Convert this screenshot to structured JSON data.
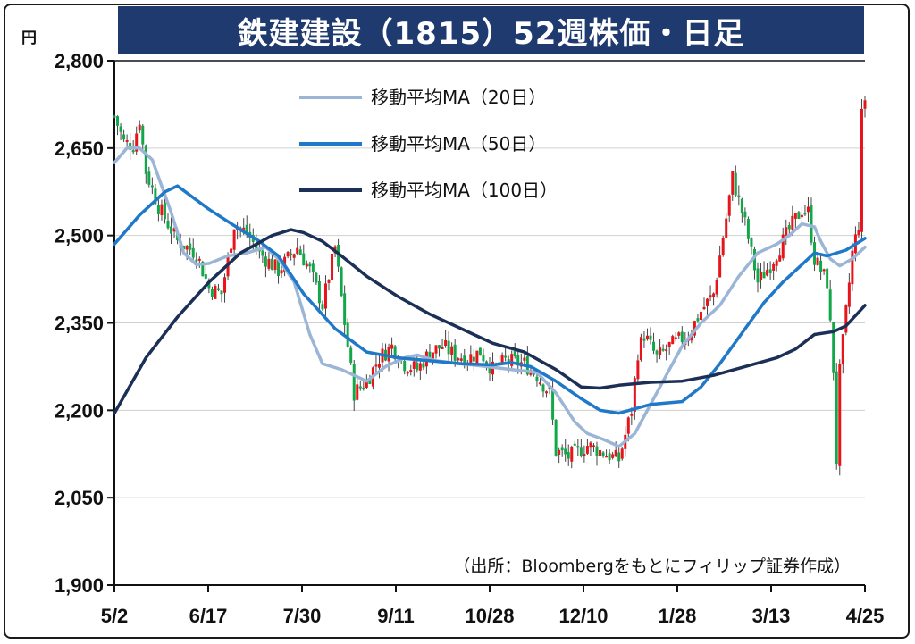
{
  "title": "鉄建建設（1815）52週株価・日足",
  "unit": "円",
  "source": "（出所：Bloombergをもとにフィリップ証券作成）",
  "colors": {
    "title_bg": "#1f3a6e",
    "up": "#e8141a",
    "down": "#12a84a",
    "ma20": "#9bb5d6",
    "ma50": "#1f78c8",
    "ma100": "#1b2f57",
    "grid": "#d0d0d0"
  },
  "chart_data": {
    "type": "candlestick",
    "title": "鉄建建設（1815）52週株価・日足",
    "ylabel": "円",
    "ylim": [
      1900,
      2800
    ],
    "yticks": [
      "2,800",
      "2,650",
      "2,500",
      "2,350",
      "2,200",
      "2,050",
      "1,900"
    ],
    "xticks": [
      "5/2",
      "6/17",
      "7/30",
      "9/11",
      "10/28",
      "12/10",
      "1/28",
      "3/13",
      "4/25"
    ],
    "grid": "horizontal",
    "legend_position": "top-center",
    "legend": [
      "移動平均MA（20日）",
      "移動平均MA（50日）",
      "移動平均MA（100日）"
    ],
    "series": [
      {
        "name": "移動平均MA（20日）",
        "x": [
          0,
          4,
          8,
          12,
          18,
          22,
          26,
          30,
          36,
          42,
          48,
          52,
          57,
          62,
          66,
          72,
          80,
          86,
          92,
          96,
          102,
          110,
          118,
          126,
          134,
          140,
          146,
          150,
          155,
          160,
          165,
          170,
          175,
          180,
          186,
          192,
          198,
          204,
          210,
          214,
          218,
          222,
          224,
          227,
          230,
          234,
          238
        ],
        "values": [
          2625,
          2650,
          2650,
          2630,
          2540,
          2470,
          2450,
          2452,
          2465,
          2470,
          2480,
          2460,
          2420,
          2330,
          2280,
          2270,
          2250,
          2275,
          2290,
          2295,
          2285,
          2280,
          2275,
          2270,
          2265,
          2230,
          2180,
          2160,
          2150,
          2138,
          2160,
          2210,
          2260,
          2310,
          2350,
          2380,
          2430,
          2470,
          2485,
          2500,
          2520,
          2515,
          2490,
          2460,
          2448,
          2460,
          2480
        ]
      },
      {
        "name": "移動平均MA（50日）",
        "x": [
          0,
          8,
          16,
          20,
          30,
          40,
          46,
          52,
          60,
          70,
          80,
          90,
          100,
          110,
          120,
          126,
          132,
          140,
          148,
          154,
          160,
          170,
          180,
          186,
          192,
          200,
          206,
          212,
          218,
          222,
          226,
          232,
          238
        ],
        "values": [
          2485,
          2535,
          2575,
          2585,
          2545,
          2510,
          2490,
          2465,
          2400,
          2340,
          2300,
          2290,
          2285,
          2280,
          2278,
          2282,
          2275,
          2250,
          2220,
          2200,
          2195,
          2210,
          2215,
          2240,
          2280,
          2340,
          2385,
          2420,
          2450,
          2470,
          2465,
          2475,
          2495
        ]
      },
      {
        "name": "移動平均MA（100日）",
        "x": [
          0,
          10,
          20,
          30,
          40,
          50,
          56,
          60,
          66,
          72,
          80,
          90,
          100,
          110,
          120,
          130,
          140,
          148,
          154,
          160,
          170,
          180,
          190,
          200,
          210,
          216,
          222,
          228,
          232,
          238
        ],
        "values": [
          2195,
          2290,
          2360,
          2420,
          2470,
          2500,
          2510,
          2505,
          2490,
          2465,
          2430,
          2395,
          2365,
          2340,
          2315,
          2300,
          2270,
          2240,
          2238,
          2243,
          2248,
          2250,
          2260,
          2275,
          2290,
          2305,
          2330,
          2335,
          2345,
          2380
        ]
      }
    ]
  }
}
